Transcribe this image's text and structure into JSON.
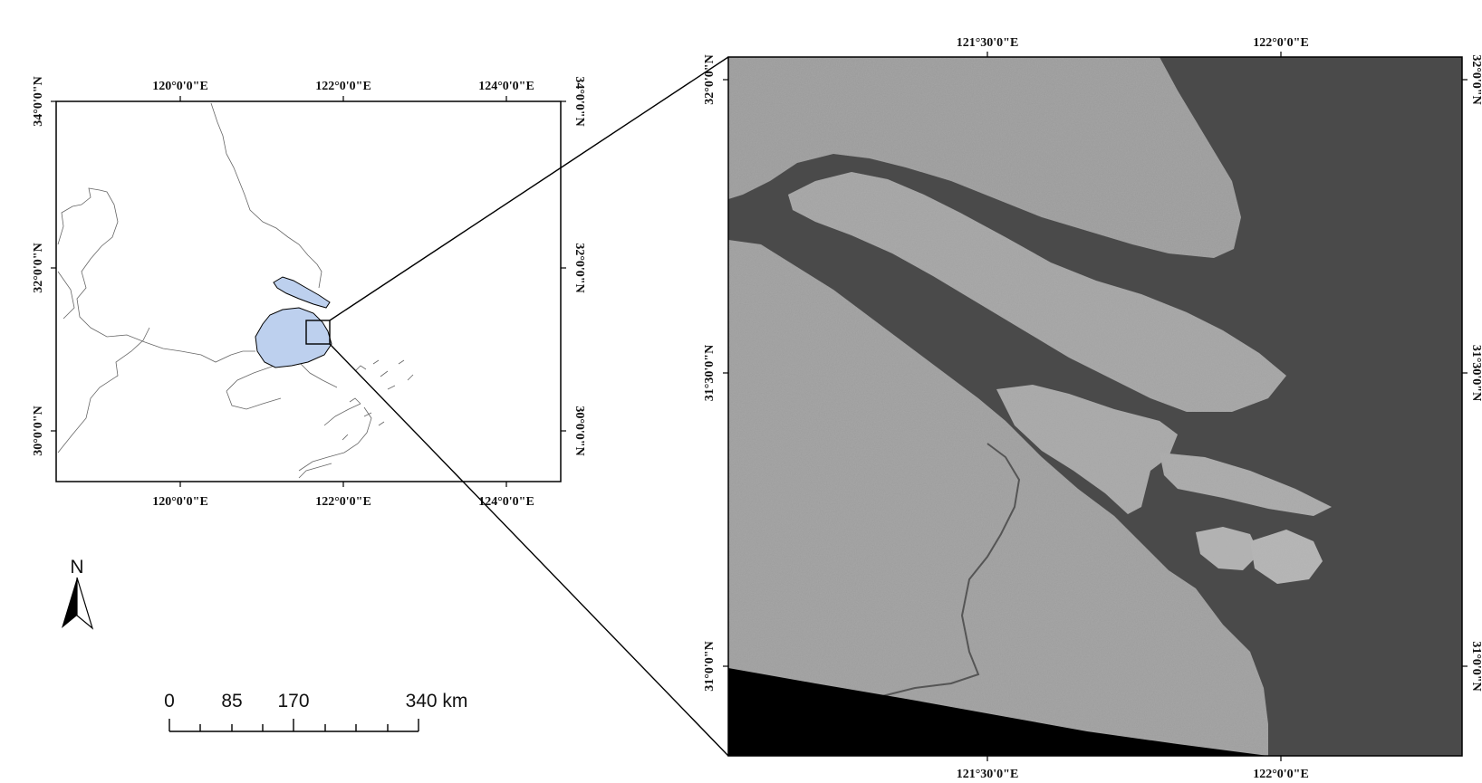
{
  "overview_map": {
    "top_lon_labels": [
      "120°0'0\"E",
      "122°0'0\"E",
      "124°0'0\"E"
    ],
    "bottom_lon_labels": [
      "120°0'0\"E",
      "122°0'0\"E",
      "124°0'0\"E"
    ],
    "left_lat_labels": [
      "34°0'0\"N",
      "32°0'0\"N",
      "30°0'0\"N"
    ],
    "right_lat_labels": [
      "34°0'0\"N",
      "32°0'0\"N",
      "30°0'0\"N"
    ],
    "highlight_color": "#bdd0ee"
  },
  "detail_map": {
    "top_lon_labels": [
      "121°30'0\"E",
      "122°0'0\"E"
    ],
    "bottom_lon_labels": [
      "121°30'0\"E",
      "122°0'0\"E"
    ],
    "left_lat_labels": [
      "32°0'0\"N",
      "31°30'0\"N",
      "31°0'0\"N"
    ],
    "right_lat_labels": [
      "32°0'0\"N",
      "31°30'0\"N",
      "31°0'0\"N"
    ],
    "water_color": "#4a4a4a",
    "land_color": "#9a9a9a"
  },
  "north_arrow": {
    "label": "N",
    "icon": "north-arrow-icon"
  },
  "scale_bar": {
    "labels": [
      "0",
      "85",
      "170",
      "340 km"
    ]
  }
}
